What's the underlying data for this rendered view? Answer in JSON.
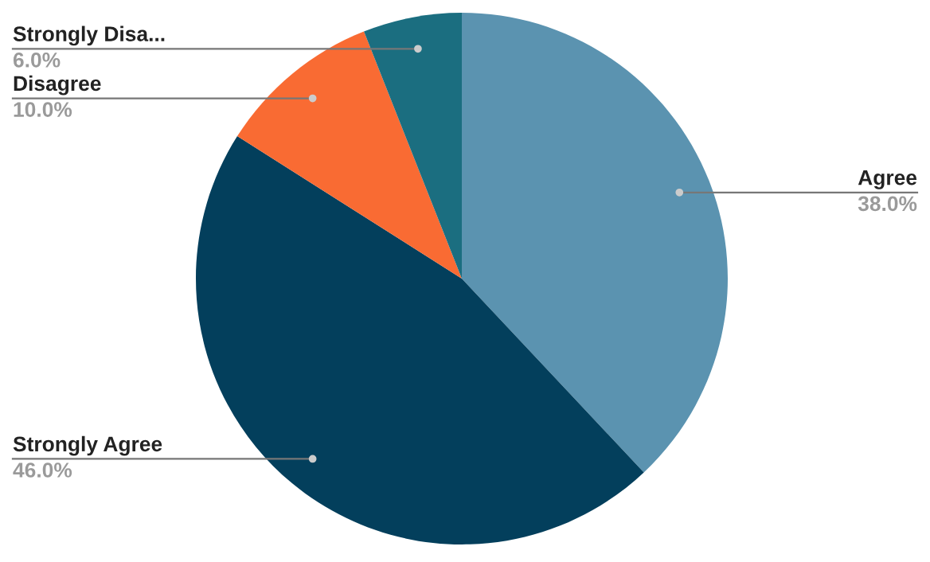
{
  "chart_data": {
    "type": "pie",
    "categories": [
      "Agree",
      "Strongly Agree",
      "Disagree",
      "Strongly Disa..."
    ],
    "values": [
      38.0,
      46.0,
      10.0,
      6.0
    ],
    "colors": [
      "#5b93b0",
      "#033f5c",
      "#f96b33",
      "#1b6e80"
    ],
    "value_labels": [
      "38.0%",
      "46.0%",
      "10.0%",
      "6.0%"
    ],
    "legend": false
  }
}
